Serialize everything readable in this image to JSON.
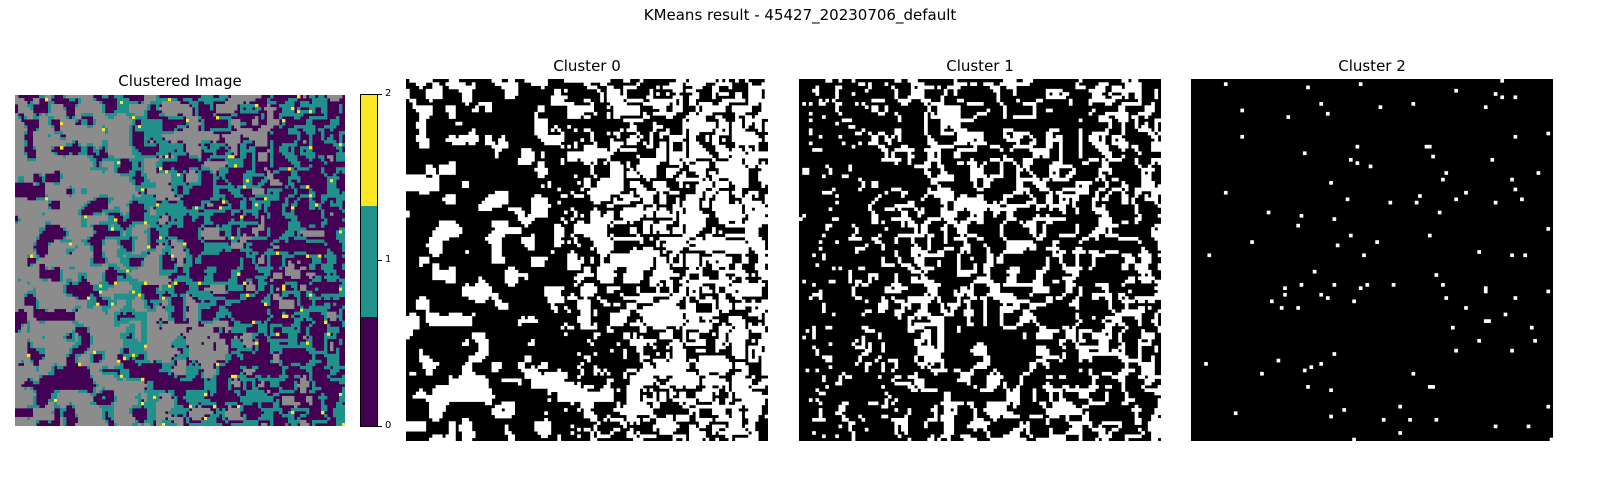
{
  "figure": {
    "suptitle": "KMeans result - 45427_20230706_default"
  },
  "chart_data": [
    {
      "type": "heatmap",
      "title": "Clustered Image",
      "cluster_labels": [
        0,
        1,
        2
      ],
      "masked_color": "#8c8c8c",
      "colormap": "viridis",
      "colors": [
        "#440154",
        "#21918c",
        "#fde725"
      ],
      "colorbar": {
        "ticks": [
          "0",
          "1",
          "2"
        ],
        "range": [
          0,
          2
        ]
      },
      "axes": "off"
    },
    {
      "type": "heatmap",
      "title": "Cluster 0",
      "colors": [
        "#000000",
        "#ffffff"
      ],
      "axes": "off",
      "approx_coverage": 0.45
    },
    {
      "type": "heatmap",
      "title": "Cluster 1",
      "colors": [
        "#000000",
        "#ffffff"
      ],
      "axes": "off",
      "approx_coverage": 0.32
    },
    {
      "type": "heatmap",
      "title": "Cluster 2",
      "colors": [
        "#000000",
        "#ffffff"
      ],
      "axes": "off",
      "approx_coverage": 0.01
    }
  ]
}
